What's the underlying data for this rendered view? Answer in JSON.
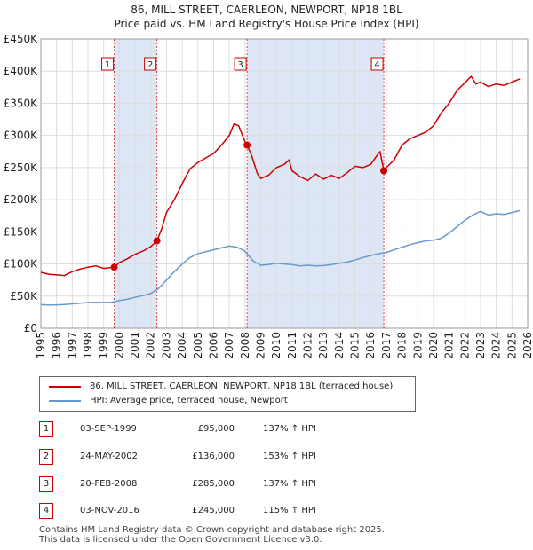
{
  "title_line1": "86, MILL STREET, CAERLEON, NEWPORT, NP18 1BL",
  "title_line2": "Price paid vs. HM Land Registry's House Price Index (HPI)",
  "colors": {
    "price": "#cc0000",
    "hpi": "#6699cc",
    "shade": "#dde6f5",
    "grid": "#dddddd"
  },
  "legend": {
    "price_label": "86, MILL STREET, CAERLEON, NEWPORT, NP18 1BL (terraced house)",
    "hpi_label": "HPI: Average price, terraced house, Newport"
  },
  "sales": [
    {
      "num": "1",
      "date": "03-SEP-1999",
      "price": "£95,000",
      "hpi": "137% ↑ HPI"
    },
    {
      "num": "2",
      "date": "24-MAY-2002",
      "price": "£136,000",
      "hpi": "153% ↑ HPI"
    },
    {
      "num": "3",
      "date": "20-FEB-2008",
      "price": "£285,000",
      "hpi": "137% ↑ HPI"
    },
    {
      "num": "4",
      "date": "03-NOV-2016",
      "price": "£245,000",
      "hpi": "115% ↑ HPI"
    }
  ],
  "footer_line1": "Contains HM Land Registry data © Crown copyright and database right 2025.",
  "footer_line2": "This data is licensed under the Open Government Licence v3.0.",
  "chart_data": {
    "type": "line",
    "xlim": [
      1995,
      2026
    ],
    "ylim": [
      0,
      450000
    ],
    "x_ticks": [
      1995,
      1996,
      1997,
      1998,
      1999,
      2000,
      2001,
      2002,
      2003,
      2004,
      2005,
      2006,
      2007,
      2008,
      2009,
      2010,
      2011,
      2012,
      2013,
      2014,
      2015,
      2016,
      2017,
      2018,
      2019,
      2020,
      2021,
      2022,
      2023,
      2024,
      2025,
      2026
    ],
    "y_ticks": [
      0,
      50000,
      100000,
      150000,
      200000,
      250000,
      300000,
      350000,
      400000,
      450000
    ],
    "y_tick_labels": [
      "£0",
      "£50K",
      "£100K",
      "£150K",
      "£200K",
      "£250K",
      "£300K",
      "£350K",
      "£400K",
      "£450K"
    ],
    "shaded_spans": [
      [
        1999.67,
        2002.39
      ],
      [
        2008.13,
        2016.84
      ]
    ],
    "sale_markers": [
      {
        "label": "1",
        "x": 1999.67,
        "y": 95000
      },
      {
        "label": "2",
        "x": 2002.39,
        "y": 136000
      },
      {
        "label": "3",
        "x": 2008.13,
        "y": 285000
      },
      {
        "label": "4",
        "x": 2016.84,
        "y": 245000
      }
    ],
    "series": [
      {
        "name": "86, MILL STREET, CAERLEON, NEWPORT, NP18 1BL (terraced house)",
        "color": "#cc0000",
        "x": [
          1995,
          1995.5,
          1996,
          1996.5,
          1997,
          1997.5,
          1998,
          1998.5,
          1999,
          1999.67,
          2000,
          2000.5,
          2001,
          2001.5,
          2002,
          2002.39,
          2002.7,
          2003,
          2003.5,
          2004,
          2004.5,
          2005,
          2005.5,
          2006,
          2006.5,
          2007,
          2007.3,
          2007.6,
          2008,
          2008.13,
          2008.4,
          2008.8,
          2009,
          2009.5,
          2010,
          2010.5,
          2010.8,
          2011,
          2011.5,
          2012,
          2012.5,
          2013,
          2013.5,
          2014,
          2014.5,
          2015,
          2015.5,
          2016,
          2016.3,
          2016.6,
          2016.84,
          2017,
          2017.5,
          2018,
          2018.5,
          2019,
          2019.5,
          2020,
          2020.5,
          2021,
          2021.5,
          2022,
          2022.4,
          2022.7,
          2023,
          2023.5,
          2024,
          2024.5,
          2025,
          2025.5
        ],
        "y": [
          87000,
          84000,
          83000,
          82000,
          88000,
          92000,
          95000,
          97000,
          93000,
          95000,
          102000,
          108000,
          115000,
          120000,
          127000,
          136000,
          155000,
          180000,
          200000,
          225000,
          248000,
          258000,
          265000,
          272000,
          285000,
          300000,
          318000,
          315000,
          290000,
          285000,
          270000,
          240000,
          233000,
          238000,
          250000,
          255000,
          262000,
          245000,
          236000,
          230000,
          240000,
          232000,
          238000,
          233000,
          242000,
          252000,
          250000,
          255000,
          265000,
          275000,
          245000,
          250000,
          262000,
          285000,
          295000,
          300000,
          305000,
          315000,
          335000,
          350000,
          370000,
          382000,
          392000,
          380000,
          383000,
          376000,
          380000,
          378000,
          383000,
          388000
        ]
      },
      {
        "name": "HPI: Average price, terraced house, Newport",
        "color": "#6699cc",
        "x": [
          1995,
          1995.5,
          1996,
          1996.5,
          1997,
          1997.5,
          1998,
          1998.5,
          1999,
          1999.5,
          2000,
          2000.5,
          2001,
          2001.5,
          2002,
          2002.5,
          2003,
          2003.5,
          2004,
          2004.5,
          2005,
          2005.5,
          2006,
          2006.5,
          2007,
          2007.5,
          2008,
          2008.5,
          2009,
          2009.5,
          2010,
          2010.5,
          2011,
          2011.5,
          2012,
          2012.5,
          2013,
          2013.5,
          2014,
          2014.5,
          2015,
          2015.5,
          2016,
          2016.5,
          2017,
          2017.5,
          2018,
          2018.5,
          2019,
          2019.5,
          2020,
          2020.5,
          2021,
          2021.5,
          2022,
          2022.5,
          2023,
          2023.5,
          2024,
          2024.5,
          2025,
          2025.5
        ],
        "y": [
          37000,
          36000,
          36500,
          37000,
          38000,
          39000,
          40000,
          40500,
          40000,
          40500,
          43000,
          45000,
          48000,
          51000,
          54000,
          62000,
          75000,
          88000,
          100000,
          110000,
          116000,
          119000,
          122000,
          125000,
          128000,
          126000,
          120000,
          105000,
          98000,
          99000,
          101000,
          100000,
          99000,
          97000,
          98000,
          97000,
          97500,
          99000,
          101000,
          103000,
          106000,
          110000,
          113000,
          116000,
          118000,
          122000,
          126000,
          130000,
          133000,
          136000,
          137000,
          140000,
          148000,
          158000,
          168000,
          176000,
          182000,
          176000,
          178000,
          177000,
          180000,
          183000
        ]
      }
    ]
  }
}
